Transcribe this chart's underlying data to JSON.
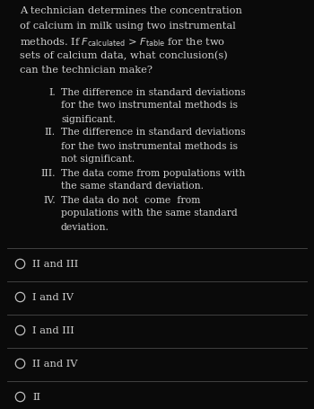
{
  "background_color": "#0a0a0a",
  "text_color": "#d0d0d0",
  "question_lines": [
    "A technician determines the concentration",
    "of calcium in milk using two instrumental",
    "methods. If $F_{\\mathrm{calculated}}$ > $F_{\\mathrm{table}}$ for the two",
    "sets of calcium data, what conclusion(s)",
    "can the technician make?"
  ],
  "roman_items": [
    {
      "numeral": "I.",
      "lines": [
        "The difference in standard deviations",
        "for the two instrumental methods is",
        "significant."
      ]
    },
    {
      "numeral": "II.",
      "lines": [
        "The difference in standard deviations",
        "for the two instrumental methods is",
        "not significant."
      ]
    },
    {
      "numeral": "III.",
      "lines": [
        "The data come from populations with",
        "the same standard deviation."
      ]
    },
    {
      "numeral": "IV.",
      "lines": [
        "The data do not  come  from",
        "populations with the same standard",
        "deviation."
      ]
    }
  ],
  "choices": [
    "II and III",
    "I and IV",
    "I and III",
    "II and IV",
    "II"
  ],
  "line_color": "#4a4a4a",
  "circle_edge_color": "#c0c0c0"
}
